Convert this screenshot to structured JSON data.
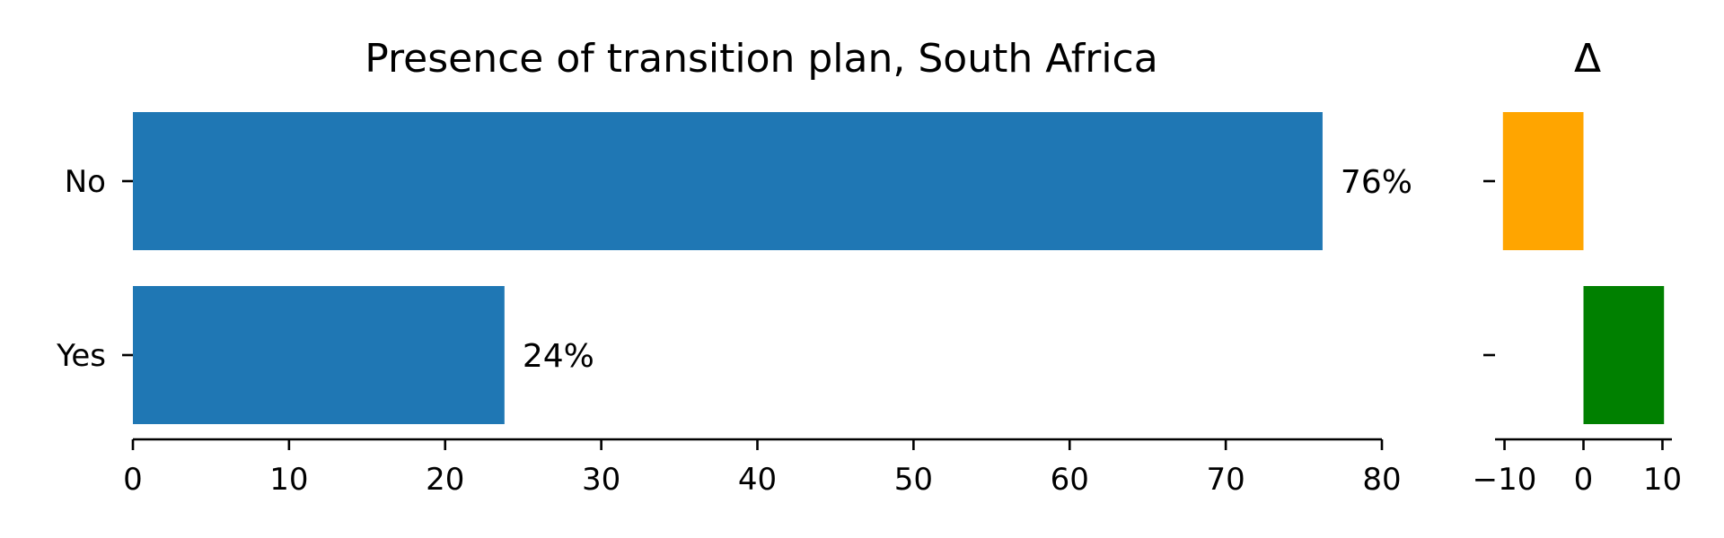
{
  "chart_data": [
    {
      "type": "bar",
      "orientation": "horizontal",
      "title": "Presence of transition plan, South Africa",
      "categories": [
        "No",
        "Yes"
      ],
      "values": [
        76.2,
        23.8
      ],
      "data_labels": [
        "76%",
        "24%"
      ],
      "xlabel": "",
      "ylabel": "",
      "xlim": [
        0,
        80
      ],
      "xticks": [
        "0",
        "10",
        "20",
        "30",
        "40",
        "50",
        "60",
        "70",
        "80"
      ],
      "grid": false,
      "color": "#1f77b4"
    },
    {
      "type": "bar",
      "orientation": "horizontal",
      "title": "Δ",
      "categories": [
        "No",
        "Yes"
      ],
      "values": [
        -10.2,
        10.2
      ],
      "colors": [
        "#ffa500",
        "#008000"
      ],
      "xlabel": "",
      "ylabel": "",
      "xlim": [
        -11.2,
        11.2
      ],
      "xticks": [
        "−10",
        "0",
        "10"
      ],
      "xtick_values": [
        -10,
        0,
        10
      ],
      "grid": false
    }
  ]
}
